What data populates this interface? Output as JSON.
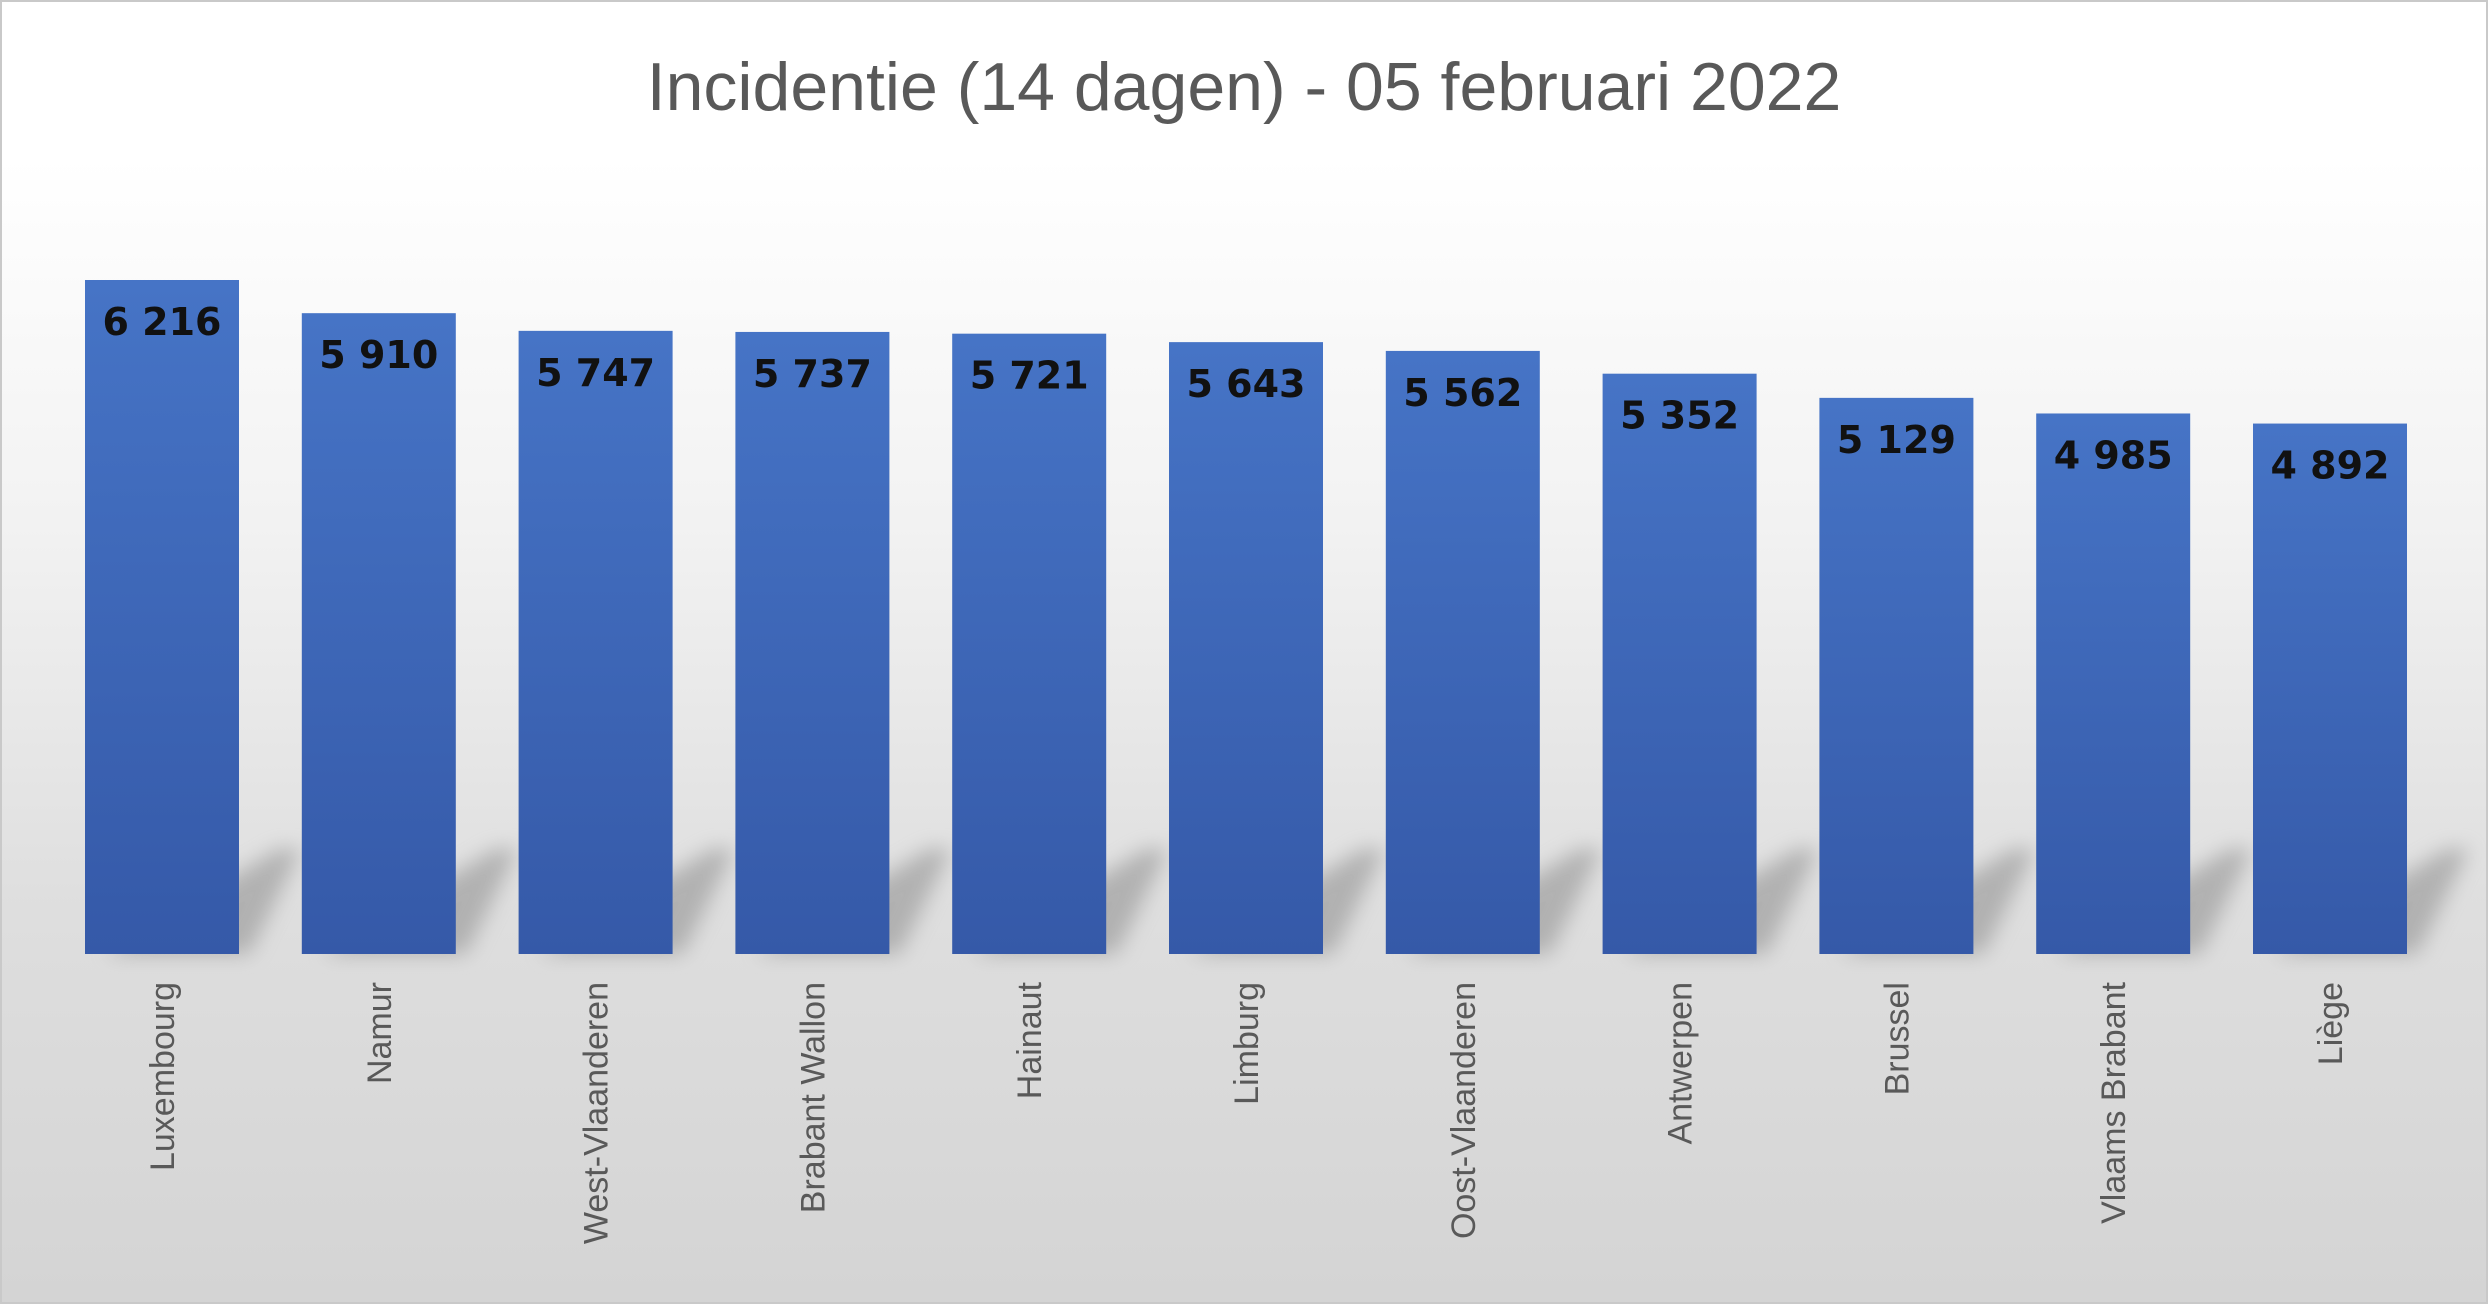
{
  "chart_data": {
    "type": "bar",
    "title": "Incidentie (14 dagen) - 05 februari 2022",
    "xlabel": "",
    "ylabel": "",
    "categories": [
      "Luxembourg",
      "Namur",
      "West-Vlaanderen",
      "Brabant Wallon",
      "Hainaut",
      "Limburg",
      "Oost-Vlaanderen",
      "Antwerpen",
      "Brussel",
      "Vlaams Brabant",
      "Liège"
    ],
    "values": [
      6216,
      5910,
      5747,
      5737,
      5721,
      5643,
      5562,
      5352,
      5129,
      4985,
      4892
    ],
    "value_labels": [
      "6 216",
      "5 910",
      "5 747",
      "5 737",
      "5 721",
      "5 643",
      "5 562",
      "5 352",
      "5 129",
      "4 985",
      "4 892"
    ],
    "ylim": [
      0,
      6216
    ],
    "grid": false,
    "legend": "none",
    "bar_color": "#4472C4",
    "bar_color_dark": "#3659A8"
  }
}
